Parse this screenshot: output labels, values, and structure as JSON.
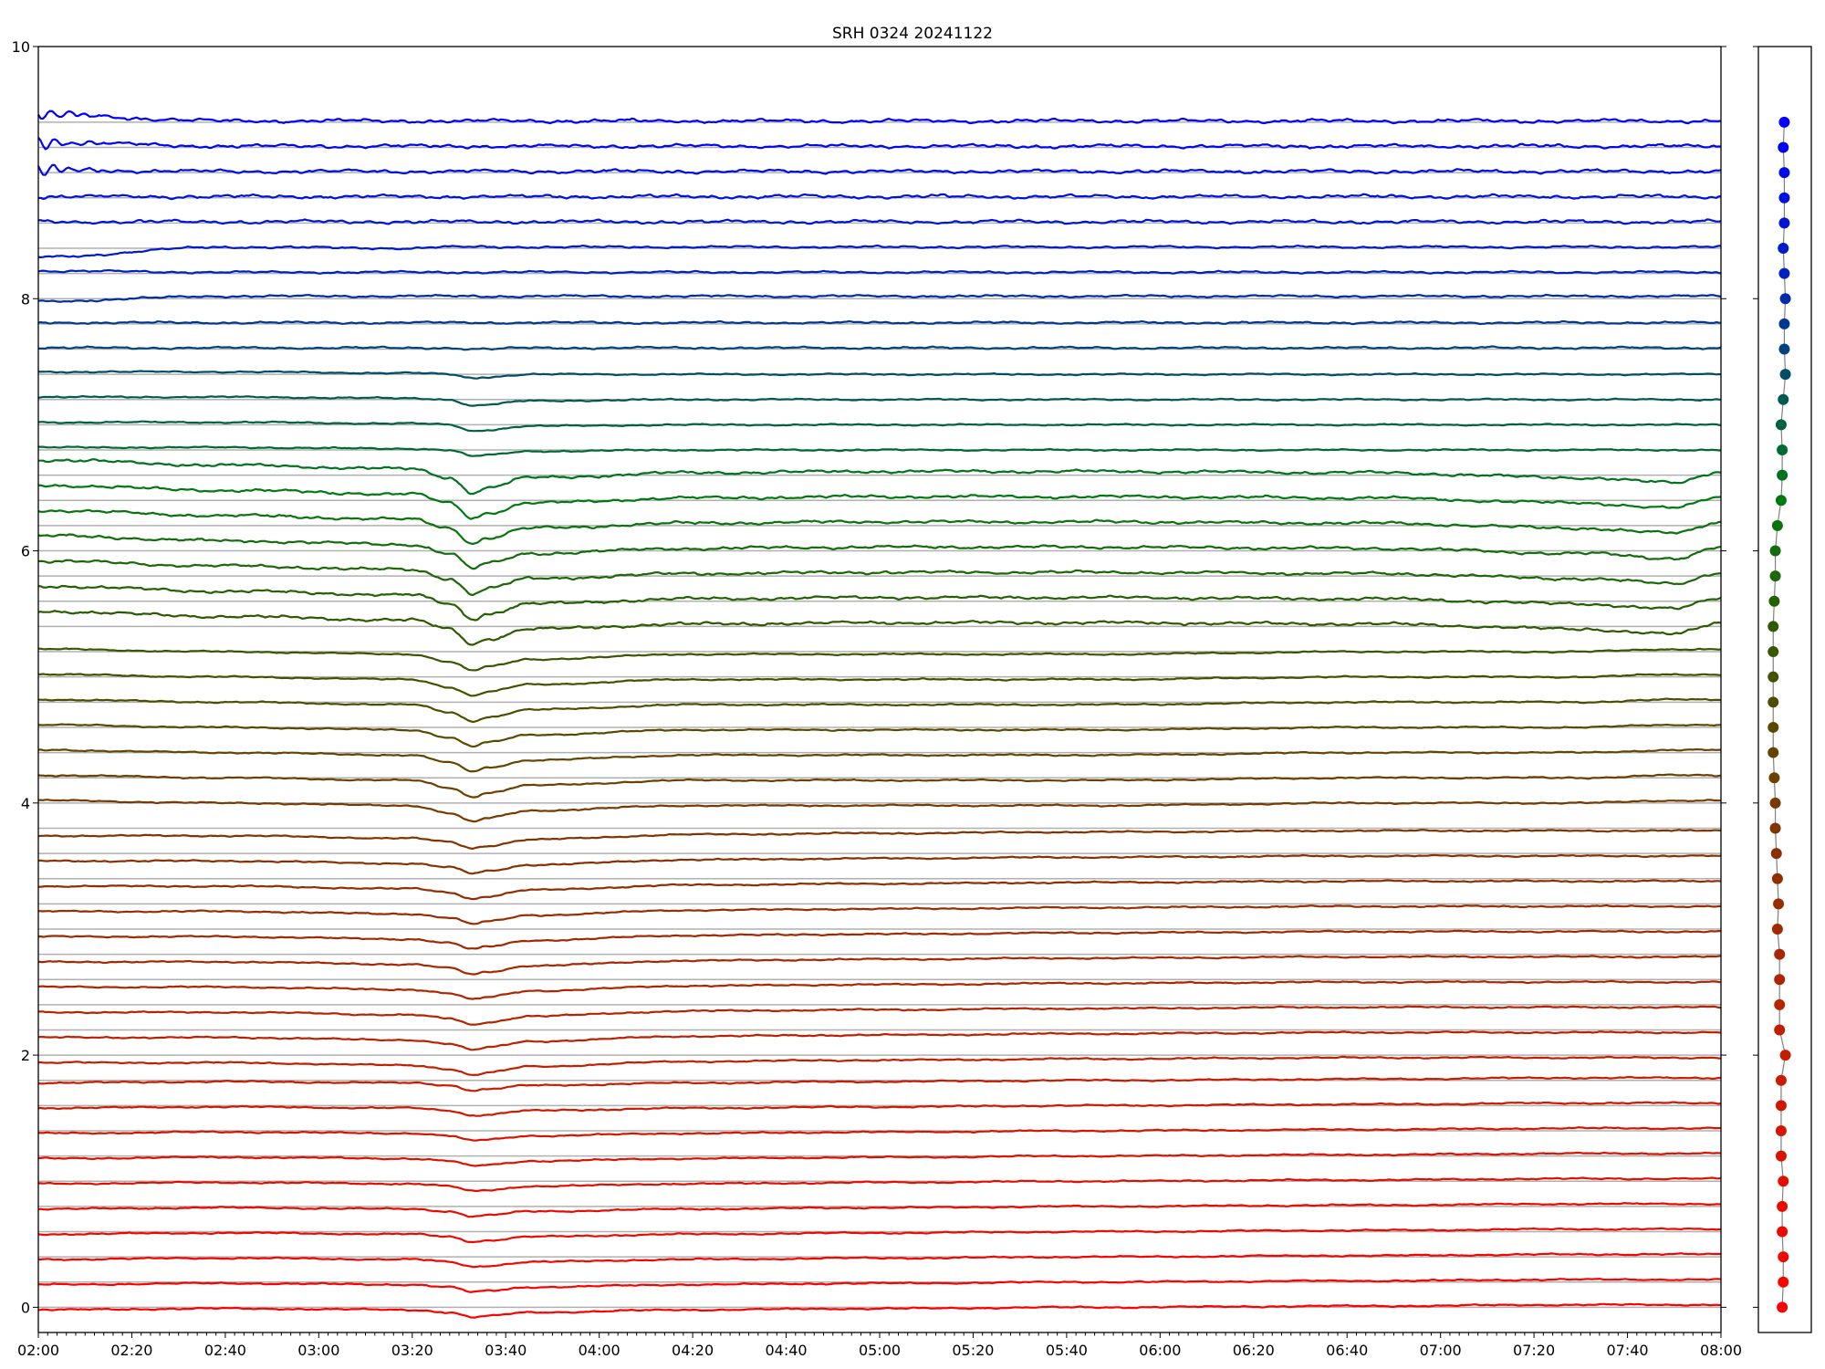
{
  "chart_data": {
    "type": "line",
    "title": "SRH 0324 20241122",
    "xlabel": "",
    "ylabel": "",
    "xlim": [
      "02:00",
      "08:00"
    ],
    "ylim": [
      -0.2,
      10
    ],
    "x_ticks": [
      "02:00",
      "02:20",
      "02:40",
      "03:00",
      "03:20",
      "03:40",
      "04:00",
      "04:20",
      "04:40",
      "05:00",
      "05:20",
      "05:40",
      "06:00",
      "06:20",
      "06:40",
      "07:00",
      "07:20",
      "07:40",
      "08:00"
    ],
    "x_minor_tick_step_minutes": 2,
    "y_ticks": [
      "0",
      "2",
      "4",
      "6",
      "8",
      "10"
    ],
    "grid": "horizontal reference line at each trace level",
    "reference_line_color": "#b0b0b0",
    "color_stops": [
      [
        0,
        "#ff0000"
      ],
      [
        2,
        "#c41e00"
      ],
      [
        3.6,
        "#8a3000"
      ],
      [
        4.6,
        "#5a4a00"
      ],
      [
        5.4,
        "#2e5a00"
      ],
      [
        6.4,
        "#007a10"
      ],
      [
        7.2,
        "#005a50"
      ],
      [
        8.2,
        "#0020c0"
      ],
      [
        9.4,
        "#0000ff"
      ]
    ],
    "x": [
      "02:00",
      "02:40",
      "03:20",
      "03:28",
      "03:33",
      "03:36",
      "03:45",
      "04:20",
      "05:00",
      "05:45",
      "06:45",
      "07:30",
      "07:50",
      "08:00"
    ],
    "series": [
      {
        "level": 0.0,
        "values": [
          -0.02,
          -0.01,
          -0.02,
          -0.04,
          -0.08,
          -0.07,
          -0.04,
          -0.02,
          -0.01,
          0,
          0.01,
          0.02,
          0.02,
          0.02
        ]
      },
      {
        "level": 0.2,
        "values": [
          0.18,
          0.19,
          0.18,
          0.16,
          0.12,
          0.13,
          0.16,
          0.18,
          0.19,
          0.2,
          0.21,
          0.22,
          0.22,
          0.22
        ]
      },
      {
        "level": 0.4,
        "values": [
          0.38,
          0.39,
          0.38,
          0.36,
          0.32,
          0.33,
          0.36,
          0.38,
          0.39,
          0.4,
          0.41,
          0.42,
          0.42,
          0.42
        ]
      },
      {
        "level": 0.6,
        "values": [
          0.58,
          0.59,
          0.58,
          0.56,
          0.52,
          0.53,
          0.56,
          0.58,
          0.59,
          0.6,
          0.61,
          0.62,
          0.62,
          0.62
        ]
      },
      {
        "level": 0.8,
        "values": [
          0.78,
          0.79,
          0.78,
          0.76,
          0.72,
          0.73,
          0.76,
          0.78,
          0.79,
          0.8,
          0.81,
          0.82,
          0.82,
          0.82
        ]
      },
      {
        "level": 1.0,
        "values": [
          0.98,
          0.99,
          0.98,
          0.96,
          0.92,
          0.93,
          0.96,
          0.98,
          0.99,
          1.0,
          1.01,
          1.02,
          1.02,
          1.02
        ]
      },
      {
        "level": 1.2,
        "values": [
          1.18,
          1.19,
          1.18,
          1.16,
          1.12,
          1.13,
          1.16,
          1.18,
          1.19,
          1.2,
          1.21,
          1.22,
          1.22,
          1.22
        ]
      },
      {
        "level": 1.4,
        "values": [
          1.38,
          1.39,
          1.38,
          1.36,
          1.32,
          1.33,
          1.36,
          1.38,
          1.39,
          1.4,
          1.41,
          1.42,
          1.42,
          1.42
        ]
      },
      {
        "level": 1.6,
        "values": [
          1.58,
          1.59,
          1.58,
          1.56,
          1.52,
          1.53,
          1.56,
          1.58,
          1.59,
          1.6,
          1.61,
          1.62,
          1.62,
          1.62
        ]
      },
      {
        "level": 1.8,
        "values": [
          1.78,
          1.79,
          1.78,
          1.76,
          1.72,
          1.73,
          1.76,
          1.78,
          1.79,
          1.8,
          1.81,
          1.82,
          1.82,
          1.82
        ]
      },
      {
        "level": 2.0,
        "values": [
          1.94,
          1.94,
          1.92,
          1.89,
          1.84,
          1.86,
          1.91,
          1.95,
          1.96,
          1.97,
          1.98,
          1.98,
          1.98,
          1.98
        ]
      },
      {
        "level": 2.2,
        "values": [
          2.14,
          2.14,
          2.12,
          2.09,
          2.04,
          2.06,
          2.11,
          2.15,
          2.16,
          2.17,
          2.18,
          2.18,
          2.18,
          2.18
        ]
      },
      {
        "level": 2.4,
        "values": [
          2.34,
          2.34,
          2.32,
          2.29,
          2.24,
          2.26,
          2.31,
          2.35,
          2.36,
          2.37,
          2.38,
          2.38,
          2.38,
          2.38
        ]
      },
      {
        "level": 2.6,
        "values": [
          2.54,
          2.54,
          2.52,
          2.49,
          2.44,
          2.46,
          2.51,
          2.55,
          2.56,
          2.57,
          2.58,
          2.58,
          2.58,
          2.58
        ]
      },
      {
        "level": 2.8,
        "values": [
          2.74,
          2.74,
          2.72,
          2.69,
          2.64,
          2.66,
          2.71,
          2.75,
          2.76,
          2.77,
          2.78,
          2.78,
          2.78,
          2.78
        ]
      },
      {
        "level": 3.0,
        "values": [
          2.94,
          2.94,
          2.92,
          2.89,
          2.84,
          2.86,
          2.91,
          2.95,
          2.96,
          2.97,
          2.98,
          2.98,
          2.98,
          2.98
        ]
      },
      {
        "level": 3.2,
        "values": [
          3.14,
          3.14,
          3.12,
          3.09,
          3.04,
          3.06,
          3.11,
          3.15,
          3.16,
          3.17,
          3.18,
          3.18,
          3.18,
          3.18
        ]
      },
      {
        "level": 3.4,
        "values": [
          3.34,
          3.34,
          3.32,
          3.29,
          3.24,
          3.26,
          3.31,
          3.35,
          3.36,
          3.37,
          3.38,
          3.38,
          3.38,
          3.38
        ]
      },
      {
        "level": 3.6,
        "values": [
          3.54,
          3.54,
          3.52,
          3.49,
          3.44,
          3.46,
          3.51,
          3.55,
          3.56,
          3.57,
          3.58,
          3.58,
          3.58,
          3.58
        ]
      },
      {
        "level": 3.8,
        "values": [
          3.74,
          3.74,
          3.72,
          3.69,
          3.64,
          3.66,
          3.71,
          3.75,
          3.76,
          3.77,
          3.78,
          3.78,
          3.78,
          3.78
        ]
      },
      {
        "level": 4.0,
        "values": [
          4.02,
          4.0,
          3.98,
          3.92,
          3.85,
          3.88,
          3.94,
          3.98,
          3.98,
          3.98,
          4.0,
          4.0,
          4.02,
          4.02
        ]
      },
      {
        "level": 4.2,
        "values": [
          4.22,
          4.2,
          4.18,
          4.12,
          4.05,
          4.08,
          4.14,
          4.18,
          4.18,
          4.18,
          4.2,
          4.2,
          4.22,
          4.22
        ]
      },
      {
        "level": 4.4,
        "values": [
          4.42,
          4.4,
          4.38,
          4.32,
          4.25,
          4.28,
          4.34,
          4.38,
          4.38,
          4.38,
          4.4,
          4.4,
          4.42,
          4.42
        ]
      },
      {
        "level": 4.6,
        "values": [
          4.62,
          4.6,
          4.58,
          4.52,
          4.45,
          4.48,
          4.54,
          4.58,
          4.58,
          4.58,
          4.6,
          4.6,
          4.62,
          4.62
        ]
      },
      {
        "level": 4.8,
        "values": [
          4.82,
          4.8,
          4.78,
          4.72,
          4.65,
          4.68,
          4.74,
          4.78,
          4.78,
          4.78,
          4.8,
          4.8,
          4.82,
          4.82
        ]
      },
      {
        "level": 5.0,
        "values": [
          5.02,
          5.0,
          4.98,
          4.92,
          4.85,
          4.88,
          4.94,
          4.98,
          4.98,
          4.98,
          5.0,
          5.0,
          5.02,
          5.02
        ]
      },
      {
        "level": 5.2,
        "values": [
          5.22,
          5.2,
          5.18,
          5.12,
          5.05,
          5.08,
          5.14,
          5.18,
          5.18,
          5.18,
          5.2,
          5.2,
          5.22,
          5.22
        ]
      },
      {
        "level": 5.4,
        "values": [
          5.52,
          5.48,
          5.45,
          5.38,
          5.26,
          5.3,
          5.38,
          5.42,
          5.43,
          5.43,
          5.42,
          5.38,
          5.34,
          5.43
        ]
      },
      {
        "level": 5.6,
        "values": [
          5.72,
          5.68,
          5.65,
          5.58,
          5.46,
          5.5,
          5.58,
          5.62,
          5.63,
          5.63,
          5.62,
          5.58,
          5.54,
          5.63
        ]
      },
      {
        "level": 5.8,
        "values": [
          5.92,
          5.88,
          5.85,
          5.78,
          5.66,
          5.7,
          5.78,
          5.82,
          5.83,
          5.83,
          5.82,
          5.78,
          5.74,
          5.83
        ]
      },
      {
        "level": 6.0,
        "values": [
          6.12,
          6.08,
          6.05,
          5.98,
          5.86,
          5.9,
          5.98,
          6.02,
          6.03,
          6.03,
          6.02,
          5.98,
          5.94,
          6.03
        ]
      },
      {
        "level": 6.2,
        "values": [
          6.32,
          6.28,
          6.25,
          6.18,
          6.06,
          6.1,
          6.18,
          6.22,
          6.23,
          6.23,
          6.22,
          6.18,
          6.14,
          6.23
        ]
      },
      {
        "level": 6.4,
        "values": [
          6.52,
          6.48,
          6.45,
          6.38,
          6.26,
          6.3,
          6.38,
          6.42,
          6.43,
          6.43,
          6.42,
          6.38,
          6.34,
          6.43
        ]
      },
      {
        "level": 6.6,
        "values": [
          6.72,
          6.68,
          6.65,
          6.58,
          6.46,
          6.5,
          6.58,
          6.62,
          6.63,
          6.63,
          6.62,
          6.58,
          6.54,
          6.63
        ]
      },
      {
        "level": 6.8,
        "values": [
          6.82,
          6.82,
          6.81,
          6.8,
          6.75,
          6.76,
          6.79,
          6.8,
          6.8,
          6.8,
          6.8,
          6.8,
          6.8,
          6.8
        ]
      },
      {
        "level": 7.0,
        "values": [
          7.02,
          7.02,
          7.01,
          7.0,
          6.95,
          6.96,
          6.99,
          7.0,
          7.0,
          7.0,
          7.0,
          7.0,
          7.0,
          7.0
        ]
      },
      {
        "level": 7.2,
        "values": [
          7.22,
          7.22,
          7.21,
          7.2,
          7.15,
          7.16,
          7.19,
          7.2,
          7.2,
          7.2,
          7.2,
          7.2,
          7.2,
          7.2
        ]
      },
      {
        "level": 7.4,
        "values": [
          7.42,
          7.42,
          7.41,
          7.4,
          7.37,
          7.38,
          7.4,
          7.4,
          7.4,
          7.4,
          7.4,
          7.4,
          7.4,
          7.4
        ]
      },
      {
        "level": 7.6,
        "values": [
          7.61,
          7.61,
          7.61,
          7.61,
          7.6,
          7.6,
          7.61,
          7.61,
          7.61,
          7.61,
          7.61,
          7.61,
          7.61,
          7.61
        ]
      },
      {
        "level": 7.8,
        "values": [
          7.81,
          7.81,
          7.81,
          7.81,
          7.81,
          7.81,
          7.81,
          7.81,
          7.81,
          7.81,
          7.81,
          7.81,
          7.81,
          7.81
        ]
      },
      {
        "level": 8.0,
        "values": [
          7.98,
          8.02,
          8.02,
          8.02,
          8.02,
          8.02,
          8.02,
          8.02,
          8.02,
          8.02,
          8.02,
          8.02,
          8.02,
          8.02
        ]
      },
      {
        "level": 8.2,
        "values": [
          8.22,
          8.21,
          8.21,
          8.21,
          8.21,
          8.21,
          8.21,
          8.21,
          8.21,
          8.21,
          8.21,
          8.21,
          8.21,
          8.21
        ]
      },
      {
        "level": 8.4,
        "values": [
          8.33,
          8.41,
          8.4,
          8.41,
          8.41,
          8.41,
          8.41,
          8.41,
          8.41,
          8.41,
          8.41,
          8.41,
          8.41,
          8.41
        ]
      },
      {
        "level": 8.6,
        "values": [
          8.61,
          8.61,
          8.61,
          8.61,
          8.61,
          8.61,
          8.61,
          8.61,
          8.61,
          8.61,
          8.61,
          8.61,
          8.61,
          8.61
        ]
      },
      {
        "level": 8.8,
        "values": [
          8.81,
          8.81,
          8.81,
          8.81,
          8.81,
          8.81,
          8.81,
          8.81,
          8.81,
          8.81,
          8.81,
          8.81,
          8.81,
          8.81
        ]
      },
      {
        "level": 9.0,
        "values": [
          9.02,
          9.01,
          9.01,
          9.01,
          9.01,
          9.01,
          9.01,
          9.01,
          9.01,
          9.01,
          9.01,
          9.01,
          9.01,
          9.01
        ]
      },
      {
        "level": 9.2,
        "values": [
          9.24,
          9.21,
          9.21,
          9.21,
          9.21,
          9.21,
          9.21,
          9.21,
          9.21,
          9.21,
          9.21,
          9.21,
          9.21,
          9.21
        ]
      },
      {
        "level": 9.4,
        "values": [
          9.46,
          9.41,
          9.41,
          9.41,
          9.41,
          9.41,
          9.41,
          9.41,
          9.41,
          9.41,
          9.41,
          9.41,
          9.41,
          9.41
        ]
      }
    ],
    "side_panel": {
      "type": "scatter",
      "xlim": [
        0,
        1
      ],
      "ylim": [
        -0.2,
        10
      ],
      "connector_color": "#808080",
      "y_ticks": [
        0,
        2,
        4,
        6,
        8,
        10
      ],
      "marker_x": [
        0.45,
        0.47,
        0.47,
        0.45,
        0.45,
        0.47,
        0.43,
        0.43,
        0.43,
        0.43,
        0.51,
        0.4,
        0.4,
        0.4,
        0.4,
        0.36,
        0.38,
        0.36,
        0.34,
        0.32,
        0.32,
        0.3,
        0.28,
        0.28,
        0.28,
        0.28,
        0.28,
        0.28,
        0.3,
        0.32,
        0.32,
        0.36,
        0.43,
        0.45,
        0.45,
        0.43,
        0.47,
        0.51,
        0.49,
        0.49,
        0.51,
        0.49,
        0.47,
        0.49,
        0.49,
        0.49,
        0.47,
        0.49
      ]
    }
  }
}
